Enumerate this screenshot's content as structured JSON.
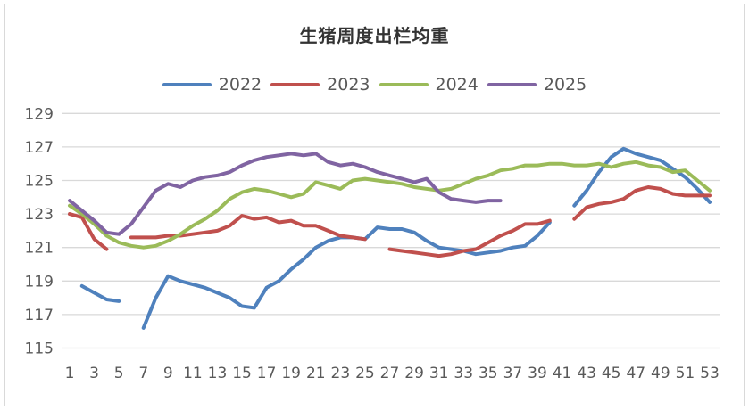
{
  "title": "生猪周度出栏均重",
  "colors": {
    "grid": "#d9d9d9",
    "axis_text": "#595959",
    "title_text": "#333333",
    "frame_border": "#d9d9d9",
    "background": "#ffffff"
  },
  "chart_data": {
    "type": "line",
    "title": "生猪周度出栏均重",
    "xlabel": "",
    "ylabel": "",
    "x": [
      1,
      2,
      3,
      4,
      5,
      6,
      7,
      8,
      9,
      10,
      11,
      12,
      13,
      14,
      15,
      16,
      17,
      18,
      19,
      20,
      21,
      22,
      23,
      24,
      25,
      26,
      27,
      28,
      29,
      30,
      31,
      32,
      33,
      34,
      35,
      36,
      37,
      38,
      39,
      40,
      41,
      42,
      43,
      44,
      45,
      46,
      47,
      48,
      49,
      50,
      51,
      52,
      53
    ],
    "xticks": [
      1,
      3,
      5,
      7,
      9,
      11,
      13,
      15,
      17,
      19,
      21,
      23,
      25,
      27,
      29,
      31,
      33,
      35,
      37,
      39,
      41,
      43,
      45,
      47,
      49,
      51,
      53
    ],
    "ylim": [
      115,
      129
    ],
    "yticks": [
      115,
      117,
      119,
      121,
      123,
      125,
      127,
      129
    ],
    "grid": "horizontal",
    "legend_position": "top",
    "series": [
      {
        "name": "2022",
        "color": "#4F81BD",
        "values": [
          null,
          118.7,
          118.3,
          117.9,
          117.8,
          null,
          116.2,
          118.0,
          119.3,
          119.0,
          118.8,
          118.6,
          118.3,
          118.0,
          117.5,
          117.4,
          118.6,
          119.0,
          119.7,
          120.3,
          121.0,
          121.4,
          121.6,
          121.6,
          121.5,
          122.2,
          122.1,
          122.1,
          121.9,
          121.4,
          121.0,
          120.9,
          120.8,
          120.6,
          120.7,
          120.8,
          121.0,
          121.1,
          121.7,
          122.5,
          null,
          123.5,
          124.4,
          125.5,
          126.4,
          126.9,
          126.6,
          126.4,
          126.2,
          125.7,
          125.2,
          124.5,
          123.7
        ]
      },
      {
        "name": "2023",
        "color": "#C0504D",
        "values": [
          123.0,
          122.8,
          121.5,
          120.9,
          null,
          121.6,
          121.6,
          121.6,
          121.7,
          121.7,
          121.8,
          121.9,
          122.0,
          122.3,
          122.9,
          122.7,
          122.8,
          122.5,
          122.6,
          122.3,
          122.3,
          122.0,
          121.7,
          121.6,
          121.5,
          null,
          120.9,
          120.8,
          120.7,
          120.6,
          120.5,
          120.6,
          120.8,
          120.9,
          121.3,
          121.7,
          122.0,
          122.4,
          122.4,
          122.6,
          null,
          122.7,
          123.4,
          123.6,
          123.7,
          123.9,
          124.4,
          124.6,
          124.5,
          124.2,
          124.1,
          124.1,
          124.1
        ]
      },
      {
        "name": "2024",
        "color": "#9BBB59",
        "values": [
          123.5,
          123.0,
          122.4,
          121.7,
          121.3,
          121.1,
          121.0,
          121.1,
          121.4,
          121.8,
          122.3,
          122.7,
          123.2,
          123.9,
          124.3,
          124.5,
          124.4,
          124.2,
          124.0,
          124.2,
          124.9,
          124.7,
          124.5,
          125.0,
          125.1,
          125.0,
          124.9,
          124.8,
          124.6,
          124.5,
          124.4,
          124.5,
          124.8,
          125.1,
          125.3,
          125.6,
          125.7,
          125.9,
          125.9,
          126.0,
          126.0,
          125.9,
          125.9,
          126.0,
          125.8,
          126.0,
          126.1,
          125.9,
          125.8,
          125.5,
          125.6,
          125.0,
          124.4
        ]
      },
      {
        "name": "2025",
        "color": "#8064A2",
        "values": [
          123.8,
          123.2,
          122.6,
          121.9,
          121.8,
          122.4,
          123.4,
          124.4,
          124.8,
          124.6,
          125.0,
          125.2,
          125.3,
          125.5,
          125.9,
          126.2,
          126.4,
          126.5,
          126.6,
          126.5,
          126.6,
          126.1,
          125.9,
          126.0,
          125.8,
          125.5,
          125.3,
          125.1,
          124.9,
          125.1,
          124.3,
          123.9,
          123.8,
          123.7,
          123.8,
          123.8,
          null,
          null,
          null,
          null,
          null,
          null,
          null,
          null,
          null,
          null,
          null,
          null,
          null,
          null,
          null,
          null,
          null
        ]
      }
    ]
  }
}
